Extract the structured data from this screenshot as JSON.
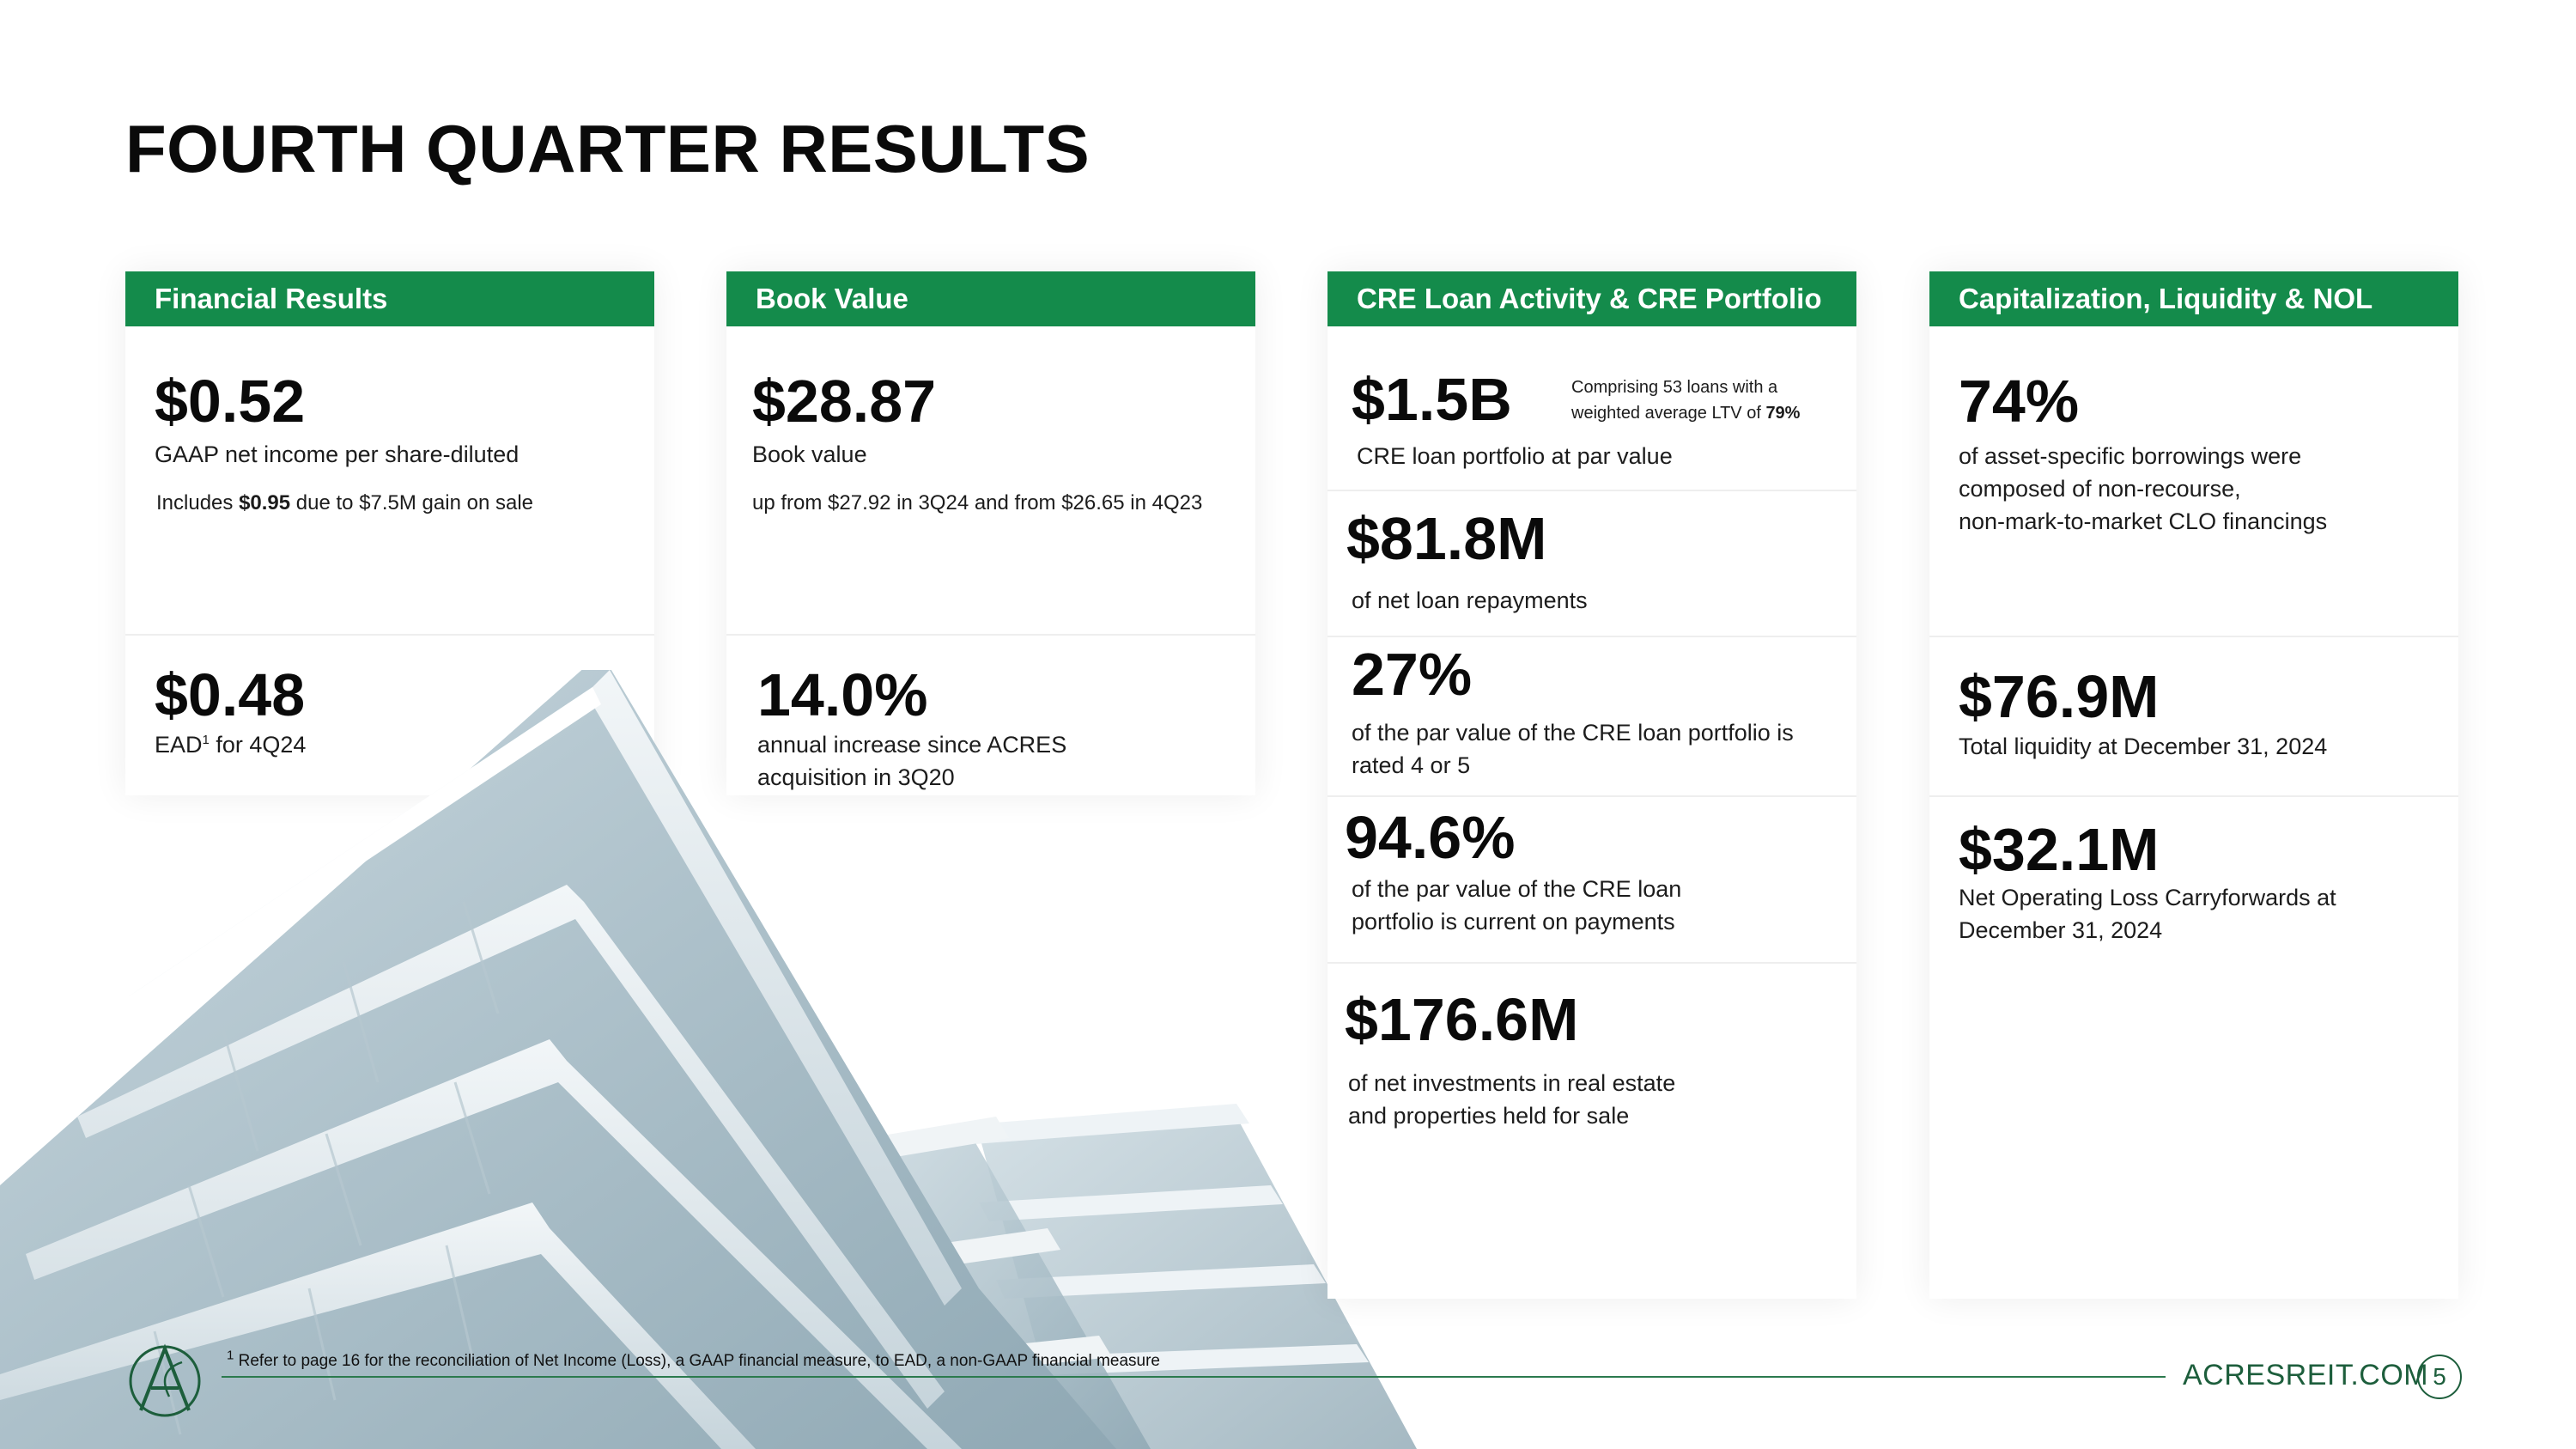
{
  "title": "FOURTH QUARTER RESULTS",
  "colors": {
    "green": "#148b4b",
    "dark_green": "#1d5e3c"
  },
  "columns": [
    {
      "header": "Financial Results",
      "cells": [
        {
          "value": "$0.52",
          "label": "GAAP net income per share-diluted",
          "note_pre": "Includes ",
          "note_bold": "$0.95",
          "note_post": " due to $7.5M gain on sale"
        },
        {
          "value": "$0.48",
          "label_pre": "EAD",
          "label_sup": "1",
          "label_post": " for 4Q24"
        }
      ]
    },
    {
      "header": "Book Value",
      "cells": [
        {
          "value": "$28.87",
          "label": "Book value",
          "note": "up from $27.92 in 3Q24 and from $26.65 in 4Q23"
        },
        {
          "value": "14.0%",
          "label_line1": "annual increase since ACRES",
          "label_line2": "acquisition in 3Q20"
        }
      ]
    },
    {
      "header": "CRE Loan Activity & CRE Portfolio",
      "cells": [
        {
          "value": "$1.5B",
          "aside_line1": "Comprising 53 loans with a",
          "aside_line2_pre": "weighted average LTV of ",
          "aside_line2_bold": "79%",
          "label": "CRE loan portfolio at par value"
        },
        {
          "value": "$81.8M",
          "label": "of net loan repayments"
        },
        {
          "value": "27%",
          "label_line1": "of the par value of the CRE loan portfolio is",
          "label_line2": "rated 4 or 5"
        },
        {
          "value": "94.6%",
          "label_line1": "of the par value of the CRE loan",
          "label_line2": "portfolio is current on payments"
        },
        {
          "value": "$176.6M",
          "label_line1": "of net investments in real estate",
          "label_line2": "and properties held for sale"
        }
      ]
    },
    {
      "header": "Capitalization, Liquidity & NOL",
      "cells": [
        {
          "value": "74%",
          "label_line1": "of asset-specific borrowings were",
          "label_line2": "composed of non-recourse,",
          "label_line3": "non-mark-to-market CLO financings"
        },
        {
          "value": "$76.9M",
          "label": "Total liquidity at December 31, 2024"
        },
        {
          "value": "$32.1M",
          "label_line1": "Net Operating Loss Carryforwards at",
          "label_line2": "December 31, 2024"
        }
      ]
    }
  ],
  "footer": {
    "footnote_sup": "1",
    "footnote": "Refer to page 16 for the reconciliation of Net Income (Loss), a GAAP financial measure, to EAD, a non-GAAP financial measure",
    "website": "ACRESREIT.COM",
    "page_number": "5"
  }
}
